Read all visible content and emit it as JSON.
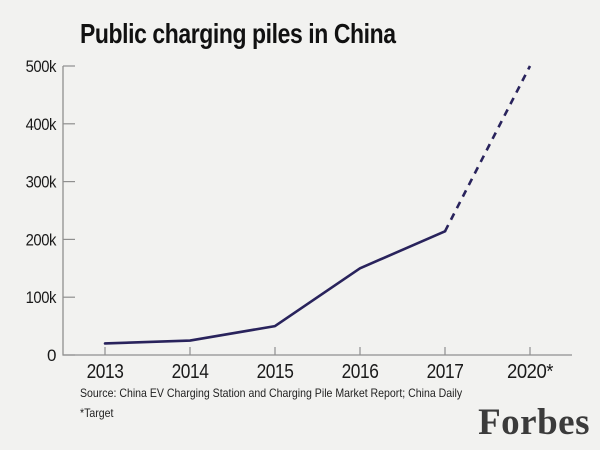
{
  "page": {
    "background": "#f2f2f0"
  },
  "chart_data": {
    "type": "line",
    "title": "Public charging piles in China",
    "categories": [
      "2013",
      "2014",
      "2015",
      "2016",
      "2017",
      "2020*"
    ],
    "series": [
      {
        "name": "Public charging piles",
        "values": [
          20000,
          25000,
          50000,
          150000,
          214000,
          500000
        ]
      }
    ],
    "dashed_from_index": 4,
    "ytick_values": [
      0,
      100000,
      200000,
      300000,
      400000,
      500000
    ],
    "ytick_labels": [
      "0",
      "100k",
      "200k",
      "300k",
      "400k",
      "500k"
    ],
    "ylim": [
      0,
      500000
    ],
    "xlabel": "",
    "ylabel": "",
    "grid": false,
    "legend_position": "none",
    "line_color": "#29235c",
    "axis_color": "#8f8f8f",
    "text_color": "#1a1a1a"
  },
  "footer": {
    "source": "Source: China EV Charging Station and Charging Pile Market Report; China Daily",
    "target_note": "*Target",
    "brand": "Forbes"
  }
}
